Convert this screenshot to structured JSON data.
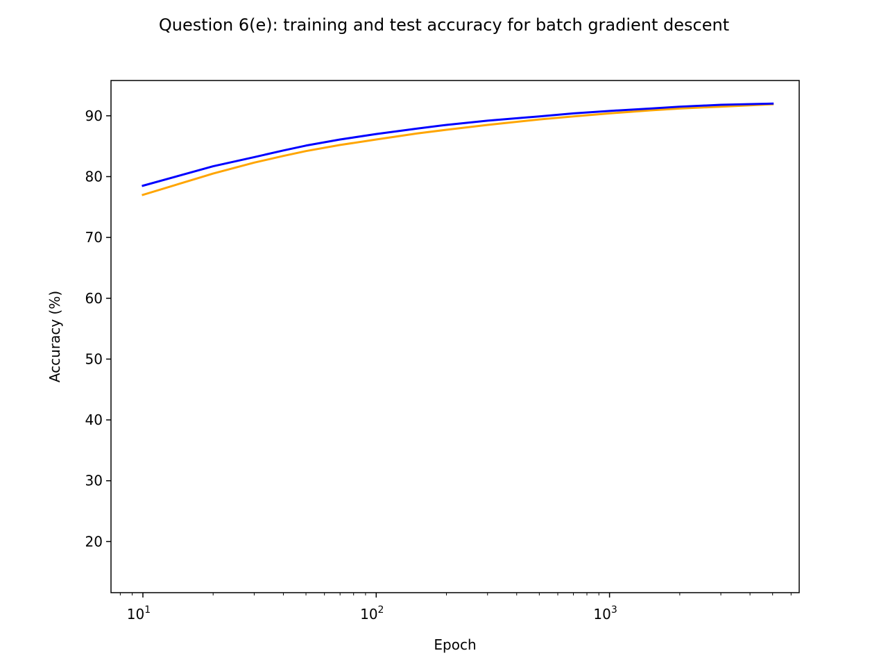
{
  "chart_data": {
    "type": "line",
    "title": "Question 6(e): training and test accuracy for batch gradient descent",
    "xlabel": "Epoch",
    "ylabel": "Accuracy (%)",
    "xscale": "log",
    "xlim": [
      7.3,
      6500
    ],
    "ylim": [
      11.6,
      95.8
    ],
    "grid": false,
    "legend": "none",
    "x_ticks": [
      10,
      100,
      1000
    ],
    "x_tick_labels": [
      {
        "base": "10",
        "exp": "1"
      },
      {
        "base": "10",
        "exp": "2"
      },
      {
        "base": "10",
        "exp": "3"
      }
    ],
    "y_ticks": [
      20,
      30,
      40,
      50,
      60,
      70,
      80,
      90
    ],
    "y_tick_labels": [
      "20",
      "30",
      "40",
      "50",
      "60",
      "70",
      "80",
      "90"
    ],
    "series": [
      {
        "color": "#ffa500",
        "x": [
          10,
          20,
          30,
          40,
          50,
          70,
          100,
          150,
          200,
          300,
          500,
          700,
          1000,
          1500,
          2000,
          3000,
          5000
        ],
        "y": [
          77.0,
          80.5,
          82.3,
          83.4,
          84.2,
          85.2,
          86.1,
          87.1,
          87.7,
          88.5,
          89.4,
          89.9,
          90.4,
          90.9,
          91.2,
          91.5,
          91.9
        ]
      },
      {
        "color": "#0000ff",
        "x": [
          10,
          20,
          30,
          40,
          50,
          70,
          100,
          150,
          200,
          300,
          500,
          700,
          1000,
          1500,
          2000,
          3000,
          5000
        ],
        "y": [
          78.5,
          81.7,
          83.2,
          84.3,
          85.1,
          86.1,
          87.0,
          87.9,
          88.5,
          89.2,
          89.9,
          90.4,
          90.8,
          91.2,
          91.5,
          91.8,
          92.0
        ]
      }
    ]
  }
}
